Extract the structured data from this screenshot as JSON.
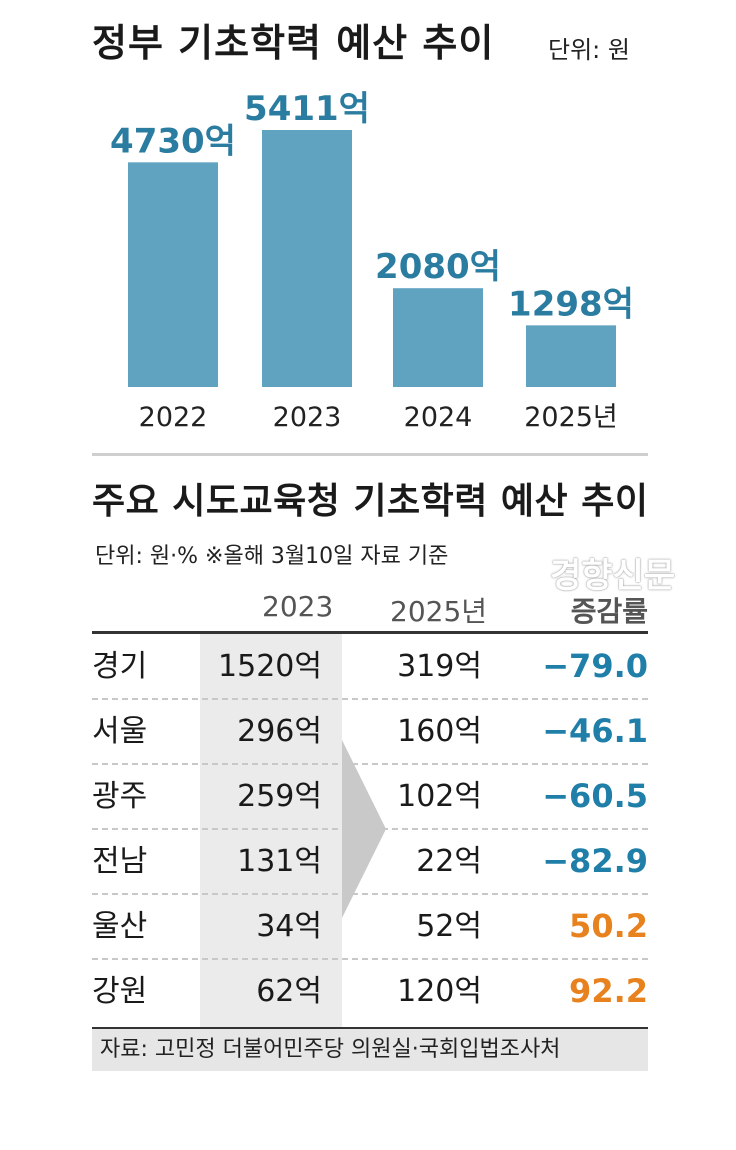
{
  "chart_data": [
    {
      "type": "bar",
      "title": "정부 기초학력 예산 추이",
      "unit_label": "단위: 원",
      "categories": [
        "2022",
        "2023",
        "2024",
        "2025년"
      ],
      "values": [
        4730,
        5411,
        2080,
        1298
      ],
      "value_labels": [
        "4730억",
        "5411억",
        "2080억",
        "1298억"
      ],
      "value_unit": "억",
      "ylim": [
        0,
        5411
      ],
      "bar_color": "#5fa3c0",
      "label_color": "#2a7ca0",
      "grid": false
    },
    {
      "type": "table",
      "title": "주요 시도교육청 기초학력 예산 추이",
      "note": "단위: 원·% ※올해 3월10일 자료 기준",
      "columns": [
        "",
        "2023",
        "2025년",
        "증감률"
      ],
      "rows": [
        {
          "region": "경기",
          "y2023": "1520억",
          "y2025": "319억",
          "rate": "−79.0",
          "sign": "neg"
        },
        {
          "region": "서울",
          "y2023": "296억",
          "y2025": "160억",
          "rate": "−46.1",
          "sign": "neg"
        },
        {
          "region": "광주",
          "y2023": "259억",
          "y2025": "102억",
          "rate": "−60.5",
          "sign": "neg"
        },
        {
          "region": "전남",
          "y2023": "131억",
          "y2025": "22억",
          "rate": "−82.9",
          "sign": "neg"
        },
        {
          "region": "울산",
          "y2023": "34억",
          "y2025": "52억",
          "rate": "50.2",
          "sign": "pos"
        },
        {
          "region": "강원",
          "y2023": "62억",
          "y2025": "120억",
          "rate": "92.2",
          "sign": "pos"
        }
      ],
      "negative_color": "#1f7fa8",
      "positive_color": "#e8821e",
      "source": "자료: 고민정 더불어민주당 의원실·국회입법조사처"
    }
  ],
  "watermark": "경향신문"
}
